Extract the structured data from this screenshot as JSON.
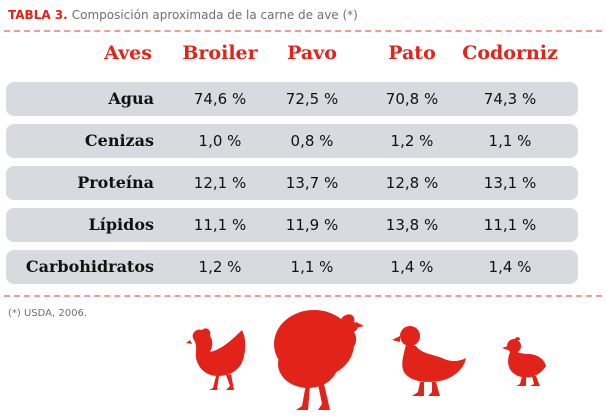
{
  "title": {
    "prefix": "TABLA 3.",
    "text": "Composición aproximada de la carne de ave (*)"
  },
  "header": {
    "label": "Aves",
    "columns": [
      "Broiler",
      "Pavo",
      "Pato",
      "Codorniz"
    ]
  },
  "rows": [
    {
      "label": "Agua",
      "values": [
        "74,6 %",
        "72,5 %",
        "70,8 %",
        "74,3 %"
      ]
    },
    {
      "label": "Cenizas",
      "values": [
        "1,0 %",
        "0,8 %",
        "1,2 %",
        "1,1 %"
      ]
    },
    {
      "label": "Proteína",
      "values": [
        "12,1 %",
        "13,7 %",
        "12,8 %",
        "13,1 %"
      ]
    },
    {
      "label": "Lípidos",
      "values": [
        "11,1 %",
        "11,9 %",
        "13,8 %",
        "11,1 %"
      ]
    },
    {
      "label": "Carbohidratos",
      "values": [
        "1,2 %",
        "1,1 %",
        "1,4 %",
        "1,4 %"
      ]
    }
  ],
  "footnote": "(*) USDA, 2006.",
  "icons": [
    "chicken-icon",
    "turkey-icon",
    "duck-icon",
    "quail-icon"
  ],
  "colors": {
    "accent": "#e2231a",
    "row_bg": "#d7dbe0",
    "muted_text": "#707070"
  }
}
